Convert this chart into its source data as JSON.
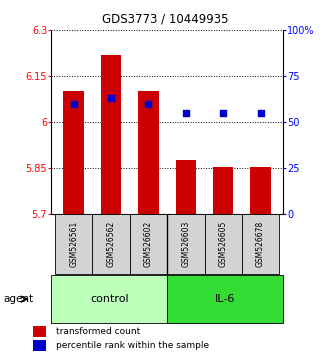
{
  "title": "GDS3773 / 10449935",
  "samples": [
    "GSM526561",
    "GSM526562",
    "GSM526602",
    "GSM526603",
    "GSM526605",
    "GSM526678"
  ],
  "groups": [
    "control",
    "control",
    "control",
    "IL-6",
    "IL-6",
    "IL-6"
  ],
  "bar_values": [
    6.1,
    6.22,
    6.1,
    5.875,
    5.855,
    5.855
  ],
  "dot_values": [
    60,
    63,
    60,
    55,
    55,
    55
  ],
  "ylim_left": [
    5.7,
    6.3
  ],
  "ylim_right": [
    0,
    100
  ],
  "yticks_left": [
    5.7,
    5.85,
    6.0,
    6.15,
    6.3
  ],
  "yticks_right": [
    0,
    25,
    50,
    75,
    100
  ],
  "ytick_labels_left": [
    "5.7",
    "5.85",
    "6",
    "6.15",
    "6.3"
  ],
  "ytick_labels_right": [
    "0",
    "25",
    "50",
    "75",
    "100%"
  ],
  "bar_color": "#cc0000",
  "dot_color": "#0000cc",
  "bar_bottom": 5.7,
  "control_color": "#bbffbb",
  "il6_color": "#33dd33",
  "agent_label": "agent",
  "control_label": "control",
  "il6_label": "IL-6",
  "legend_bar_label": "transformed count",
  "legend_dot_label": "percentile rank within the sample"
}
